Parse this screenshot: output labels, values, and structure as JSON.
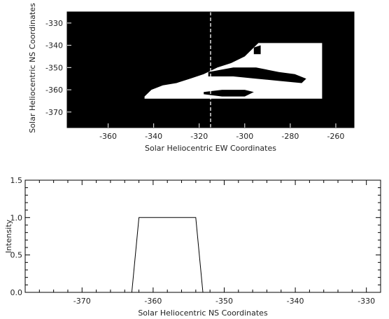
{
  "chart_data": [
    {
      "type": "image",
      "xlabel": "Solar Heliocentric EW Coordinates",
      "ylabel": "Solar Heliocentric NS Coordinates",
      "xlim": [
        -378,
        -252
      ],
      "ylim": [
        -377,
        -325
      ],
      "xticks": [
        -360,
        -340,
        -320,
        -300,
        -280,
        -260
      ],
      "yticks": [
        -330,
        -340,
        -350,
        -360,
        -370
      ],
      "background_color": "#000000",
      "region_color": "#ffffff",
      "cut_line": {
        "x": -315,
        "style": "dashed",
        "color": "#ffffff"
      },
      "regions": [
        {
          "name": "white-mask",
          "points": [
            [
              -344,
              -363
            ],
            [
              -341,
              -360
            ],
            [
              -336,
              -358
            ],
            [
              -330,
              -357
            ],
            [
              -324,
              -355
            ],
            [
              -318,
              -353
            ],
            [
              -312,
              -350
            ],
            [
              -306,
              -348
            ],
            [
              -300,
              -345
            ],
            [
              -296,
              -341
            ],
            [
              -294,
              -339
            ],
            [
              -266,
              -339
            ],
            [
              -266,
              -364
            ],
            [
              -344,
              -364
            ]
          ],
          "color": "#ffffff"
        },
        {
          "name": "filament-upper",
          "points": [
            [
              -316,
              -352
            ],
            [
              -305,
              -350
            ],
            [
              -295,
              -350
            ],
            [
              -285,
              -352
            ],
            [
              -278,
              -353
            ],
            [
              -273,
              -355
            ],
            [
              -275,
              -357
            ],
            [
              -285,
              -356
            ],
            [
              -295,
              -355
            ],
            [
              -305,
              -354
            ],
            [
              -316,
              -354
            ]
          ],
          "color": "#000000"
        },
        {
          "name": "filament-lower",
          "points": [
            [
              -318,
              -361
            ],
            [
              -310,
              -360
            ],
            [
              -300,
              -360
            ],
            [
              -296,
              -361
            ],
            [
              -300,
              -363
            ],
            [
              -310,
              -363
            ],
            [
              -318,
              -362
            ]
          ],
          "color": "#000000"
        },
        {
          "name": "blob-topright",
          "points": [
            [
              -296,
              -341
            ],
            [
              -293,
              -340
            ],
            [
              -293,
              -344
            ],
            [
              -296,
              -344
            ]
          ],
          "color": "#000000"
        }
      ]
    },
    {
      "type": "line",
      "xlabel": "Solar Heliocentric NS Coordinates",
      "ylabel": "Intensity",
      "xlim": [
        -378,
        -328
      ],
      "ylim": [
        0.0,
        1.5
      ],
      "xticks": [
        -370,
        -360,
        -350,
        -340,
        -330
      ],
      "yticks": [
        0.0,
        0.5,
        1.0,
        1.5
      ],
      "ytick_labels": [
        "0.0",
        "0.5",
        "1.0",
        "1.5"
      ],
      "x": [
        -363,
        -362,
        -354,
        -353
      ],
      "y": [
        0.0,
        1.0,
        1.0,
        0.0
      ]
    }
  ]
}
